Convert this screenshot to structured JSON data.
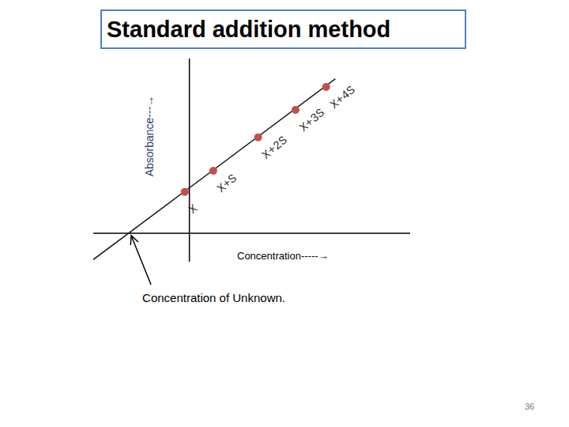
{
  "chart_data": {
    "type": "scatter",
    "title": "Standard addition method",
    "x_label": "Concentration-----→",
    "y_label": "Absorbance---→",
    "x": [
      -0.13,
      0.67,
      1.93,
      2.98,
      3.84
    ],
    "values": [
      1.16,
      1.75,
      2.69,
      3.46,
      4.1
    ],
    "point_labels": [
      "X",
      "X+S",
      "X+2S",
      "X+3S",
      "X+4S"
    ],
    "color": "#c0504d",
    "fit_line": {
      "x": [
        -2.7,
        4.1
      ],
      "values": [
        -0.74,
        4.33
      ],
      "color": "#1a1a1a"
    },
    "annotations": [
      {
        "text": "Concentration of Unknown.",
        "x": -1.7,
        "y": 0
      }
    ],
    "xlim": [
      -2.7,
      6.2
    ],
    "ylim": [
      -0.8,
      4.9
    ],
    "tick_labels": false,
    "grid": false
  },
  "slide": {
    "page_number": 36
  }
}
